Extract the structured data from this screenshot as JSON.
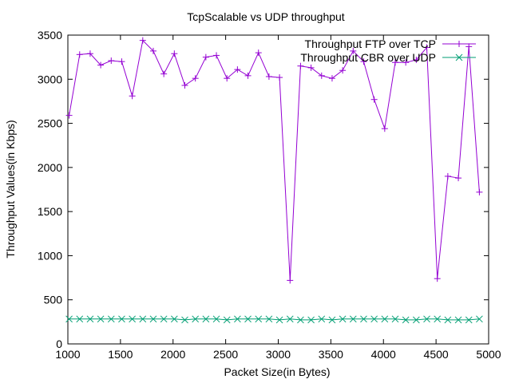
{
  "chart_data": {
    "type": "line",
    "title": "TcpScalable vs UDP throughput",
    "xlabel": "Packet Size(in Bytes)",
    "ylabel": "Throughput Values(in Kbps)",
    "xlim": [
      1000,
      5000
    ],
    "ylim": [
      0,
      3500
    ],
    "xticks": [
      1000,
      1500,
      2000,
      2500,
      3000,
      3500,
      4000,
      4500,
      5000
    ],
    "yticks": [
      0,
      500,
      1000,
      1500,
      2000,
      2500,
      3000,
      3500
    ],
    "grid": false,
    "legend_position": "top-right",
    "x": [
      1012,
      1112,
      1212,
      1312,
      1412,
      1512,
      1612,
      1712,
      1812,
      1912,
      2012,
      2112,
      2212,
      2312,
      2412,
      2512,
      2612,
      2712,
      2812,
      2912,
      3012,
      3112,
      3212,
      3312,
      3412,
      3512,
      3612,
      3712,
      3812,
      3912,
      4012,
      4112,
      4212,
      4312,
      4412,
      4512,
      4612,
      4712,
      4812,
      4912
    ],
    "series": [
      {
        "name": "Throughput FTP over TCP",
        "color": "#9400d3",
        "marker": "plus",
        "values": [
          2590,
          3280,
          3290,
          3160,
          3210,
          3200,
          2810,
          3440,
          3320,
          3060,
          3290,
          2930,
          3010,
          3250,
          3270,
          3010,
          3110,
          3040,
          3300,
          3030,
          3020,
          720,
          3150,
          3130,
          3040,
          3010,
          3100,
          3320,
          3200,
          2770,
          2440,
          3190,
          3190,
          3220,
          3360,
          740,
          1900,
          1880,
          3370,
          1720
        ]
      },
      {
        "name": "Throughput CBR over UDP",
        "color": "#009e73",
        "marker": "cross",
        "values": [
          282,
          282,
          282,
          282,
          282,
          282,
          282,
          282,
          282,
          282,
          282,
          272,
          282,
          282,
          282,
          272,
          282,
          282,
          282,
          282,
          272,
          282,
          272,
          272,
          282,
          272,
          282,
          282,
          282,
          282,
          282,
          282,
          272,
          272,
          282,
          282,
          272,
          272,
          272,
          282
        ]
      }
    ]
  }
}
